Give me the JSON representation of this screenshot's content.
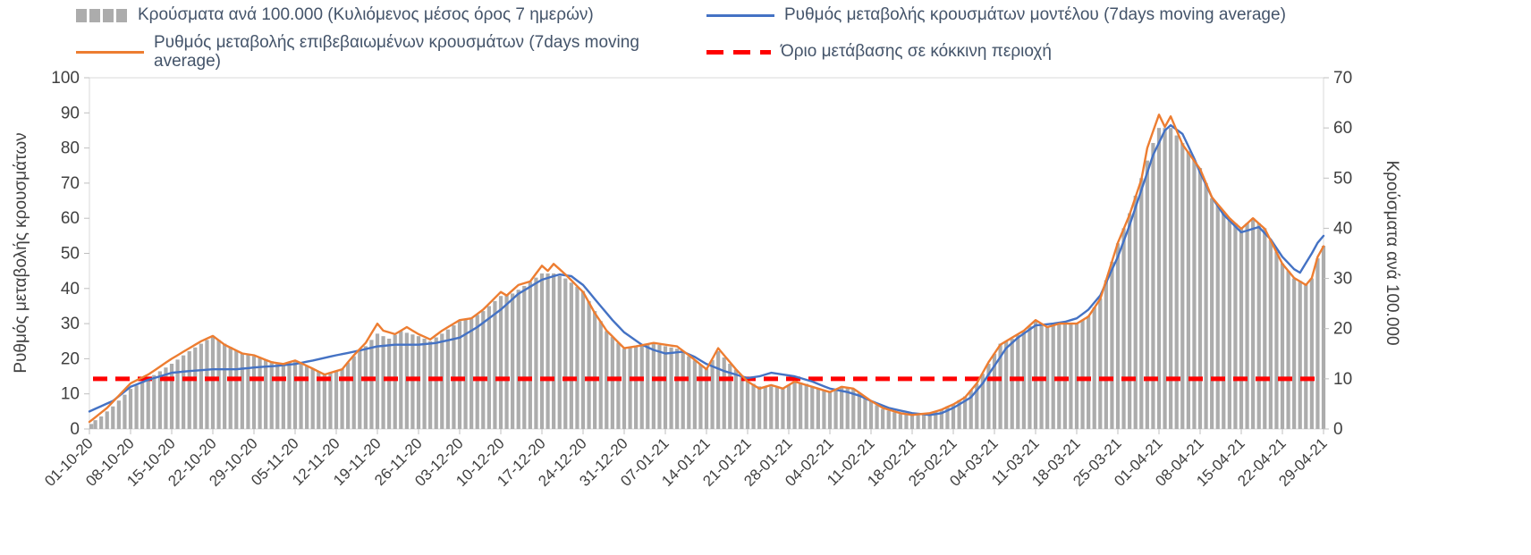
{
  "legend": {
    "items": [
      {
        "id": "cases-per-100k",
        "label": "Κρούσματα ανά 100.000 (Κυλιόμενος μέσος όρος 7 ημερών)",
        "color": "#ACACAC",
        "marker": "bar"
      },
      {
        "id": "model-rate",
        "label": "Ρυθμός μεταβολής κρουσμάτων μοντέλου (7days moving average)",
        "color": "#4472C4",
        "marker": "line"
      },
      {
        "id": "confirmed-rate",
        "label": "Ρυθμός μεταβολής επιβεβαιωμένων κρουσμάτων (7days moving average)",
        "color": "#ED7D31",
        "marker": "line"
      },
      {
        "id": "red-zone-threshold",
        "label": "Όριο μετάβασης σε κόκκινη περιοχή",
        "color": "#FF0000",
        "marker": "dashed"
      }
    ]
  },
  "chart_data": {
    "type": "combo-bar-line",
    "title": "",
    "legend_position": "top",
    "grid": false,
    "x_tick_labels": [
      "01-10-20",
      "08-10-20",
      "15-10-20",
      "22-10-20",
      "29-10-20",
      "05-11-20",
      "12-11-20",
      "19-11-20",
      "26-11-20",
      "03-12-20",
      "10-12-20",
      "17-12-20",
      "24-12-20",
      "31-12-20",
      "07-01-21",
      "14-01-21",
      "21-01-21",
      "28-01-21",
      "04-02-21",
      "11-02-21",
      "18-02-21",
      "25-02-21",
      "04-03-21",
      "11-03-21",
      "18-03-21",
      "25-03-21",
      "01-04-21",
      "08-04-21",
      "15-04-21",
      "22-04-21",
      "29-04-21"
    ],
    "x_tick_interval_days": 7,
    "x_days_total": 211,
    "axes": {
      "left": {
        "label": "Ρυθμός μεταβολής κρουσμάτων",
        "min": 0,
        "max": 100,
        "step": 10
      },
      "right": {
        "label": "Κρούσματα ανά 100.000",
        "min": 0,
        "max": 70,
        "step": 10
      }
    },
    "threshold": {
      "label": "Όριο μετάβασης σε κόκκινη περιοχή",
      "axis": "right",
      "value": 10,
      "color": "#FF0000",
      "style": "dashed"
    },
    "series": [
      {
        "id": "cases-per-100k",
        "name": "Κρούσματα ανά 100.000 (Κυλιόμενος μέσος όρος 7 ημερών)",
        "type": "bar",
        "axis": "right",
        "color": "#ACACAC",
        "points": [
          [
            0,
            1
          ],
          [
            2,
            2.5
          ],
          [
            4,
            4.5
          ],
          [
            7,
            8
          ],
          [
            10,
            10
          ],
          [
            14,
            13
          ],
          [
            17,
            15.5
          ],
          [
            19,
            17
          ],
          [
            21,
            18.5
          ],
          [
            23,
            17
          ],
          [
            26,
            15
          ],
          [
            28,
            14.5
          ],
          [
            31,
            13.5
          ],
          [
            33,
            13
          ],
          [
            35,
            13.5
          ],
          [
            37,
            12.5
          ],
          [
            40,
            11
          ],
          [
            43,
            12
          ],
          [
            45,
            14.5
          ],
          [
            47,
            16.5
          ],
          [
            49,
            19
          ],
          [
            51,
            18
          ],
          [
            53,
            19.5
          ],
          [
            56,
            18.5
          ],
          [
            58,
            17.5
          ],
          [
            60,
            19
          ],
          [
            63,
            21.5
          ],
          [
            65,
            22
          ],
          [
            67,
            23.5
          ],
          [
            70,
            26.5
          ],
          [
            72,
            27
          ],
          [
            74,
            28.5
          ],
          [
            77,
            31
          ],
          [
            79,
            31
          ],
          [
            81,
            30
          ],
          [
            84,
            27.5
          ],
          [
            86,
            23.5
          ],
          [
            88,
            19.5
          ],
          [
            91,
            16
          ],
          [
            93,
            16.5
          ],
          [
            96,
            17
          ],
          [
            98,
            16.5
          ],
          [
            100,
            16
          ],
          [
            102,
            14.5
          ],
          [
            105,
            12
          ],
          [
            107,
            15.5
          ],
          [
            109,
            13
          ],
          [
            112,
            9.5
          ],
          [
            114,
            8.5
          ],
          [
            116,
            8.5
          ],
          [
            118,
            8
          ],
          [
            120,
            9.5
          ],
          [
            122,
            9
          ],
          [
            124,
            8
          ],
          [
            126,
            7.5
          ],
          [
            128,
            8.5
          ],
          [
            130,
            8
          ],
          [
            133,
            5.5
          ],
          [
            135,
            4
          ],
          [
            138,
            3
          ],
          [
            140,
            3
          ],
          [
            143,
            3
          ],
          [
            145,
            4
          ],
          [
            147,
            5
          ],
          [
            149,
            6.5
          ],
          [
            151,
            9
          ],
          [
            153,
            13
          ],
          [
            155,
            17
          ],
          [
            157,
            18
          ],
          [
            159,
            19.5
          ],
          [
            161,
            21.5
          ],
          [
            163,
            20.5
          ],
          [
            165,
            21
          ],
          [
            168,
            21
          ],
          [
            170,
            22.5
          ],
          [
            172,
            26
          ],
          [
            175,
            37
          ],
          [
            177,
            43
          ],
          [
            179,
            50
          ],
          [
            181,
            57
          ],
          [
            182,
            60
          ],
          [
            184,
            60
          ],
          [
            186,
            57
          ],
          [
            189,
            52
          ],
          [
            191,
            46
          ],
          [
            194,
            42
          ],
          [
            196,
            40
          ],
          [
            198,
            42
          ],
          [
            200,
            40
          ],
          [
            203,
            33
          ],
          [
            205,
            30
          ],
          [
            207,
            29
          ],
          [
            208,
            30
          ],
          [
            209,
            34
          ],
          [
            210,
            36.5
          ]
        ]
      },
      {
        "id": "model-rate",
        "name": "Ρυθμός μεταβολής κρουσμάτων μοντέλου (7days moving average)",
        "type": "line",
        "axis": "left",
        "color": "#4472C4",
        "points": [
          [
            0,
            5
          ],
          [
            4,
            8
          ],
          [
            7,
            12
          ],
          [
            10,
            14
          ],
          [
            14,
            16
          ],
          [
            17,
            16.5
          ],
          [
            21,
            17
          ],
          [
            25,
            17
          ],
          [
            28,
            17.5
          ],
          [
            32,
            18
          ],
          [
            35,
            18.5
          ],
          [
            38,
            19.5
          ],
          [
            42,
            21
          ],
          [
            45,
            22
          ],
          [
            49,
            23.5
          ],
          [
            52,
            24
          ],
          [
            56,
            24
          ],
          [
            59,
            24.5
          ],
          [
            63,
            26
          ],
          [
            66,
            29
          ],
          [
            70,
            34
          ],
          [
            73,
            38.5
          ],
          [
            77,
            42.5
          ],
          [
            80,
            44
          ],
          [
            82,
            43.5
          ],
          [
            84,
            41
          ],
          [
            87,
            35
          ],
          [
            89,
            31
          ],
          [
            91,
            27.5
          ],
          [
            94,
            24
          ],
          [
            96,
            22.5
          ],
          [
            98,
            21.5
          ],
          [
            101,
            22
          ],
          [
            103,
            20.5
          ],
          [
            105,
            18.5
          ],
          [
            108,
            16.5
          ],
          [
            110,
            15.5
          ],
          [
            112,
            14.5
          ],
          [
            114,
            15
          ],
          [
            116,
            16
          ],
          [
            118,
            15.5
          ],
          [
            120,
            15
          ],
          [
            123,
            13.5
          ],
          [
            126,
            11.5
          ],
          [
            129,
            10.5
          ],
          [
            131,
            9.5
          ],
          [
            133,
            8
          ],
          [
            136,
            6
          ],
          [
            140,
            4.5
          ],
          [
            143,
            4
          ],
          [
            145,
            4.5
          ],
          [
            147,
            6
          ],
          [
            150,
            9
          ],
          [
            152,
            13
          ],
          [
            154,
            18
          ],
          [
            156,
            23
          ],
          [
            158,
            26
          ],
          [
            161,
            29.5
          ],
          [
            164,
            30
          ],
          [
            166,
            30.5
          ],
          [
            168,
            31.5
          ],
          [
            170,
            34
          ],
          [
            172,
            38
          ],
          [
            175,
            49
          ],
          [
            177,
            58
          ],
          [
            179,
            68
          ],
          [
            181,
            78
          ],
          [
            183,
            85
          ],
          [
            184,
            86.5
          ],
          [
            186,
            84
          ],
          [
            188,
            77
          ],
          [
            189,
            73
          ],
          [
            191,
            66
          ],
          [
            193,
            61
          ],
          [
            196,
            56
          ],
          [
            198,
            57
          ],
          [
            199,
            57.5
          ],
          [
            201,
            54
          ],
          [
            203,
            49
          ],
          [
            205,
            45.5
          ],
          [
            206,
            44.5
          ],
          [
            208,
            50
          ],
          [
            209,
            53
          ],
          [
            210,
            55
          ]
        ]
      },
      {
        "id": "confirmed-rate",
        "name": "Ρυθμός μεταβολής επιβεβαιωμένων κρουσμάτων (7days moving average)",
        "type": "line",
        "axis": "left",
        "color": "#ED7D31",
        "points": [
          [
            0,
            2
          ],
          [
            3,
            6
          ],
          [
            7,
            13
          ],
          [
            10,
            15.5
          ],
          [
            14,
            20
          ],
          [
            17,
            23
          ],
          [
            19,
            25
          ],
          [
            21,
            26.5
          ],
          [
            23,
            24
          ],
          [
            26,
            21.5
          ],
          [
            28,
            21
          ],
          [
            31,
            19
          ],
          [
            33,
            18.5
          ],
          [
            35,
            19.5
          ],
          [
            37,
            18
          ],
          [
            40,
            15.5
          ],
          [
            43,
            17
          ],
          [
            45,
            21
          ],
          [
            47,
            24.5
          ],
          [
            49,
            30
          ],
          [
            50,
            28
          ],
          [
            52,
            27
          ],
          [
            54,
            29
          ],
          [
            56,
            27
          ],
          [
            58,
            25.5
          ],
          [
            60,
            28
          ],
          [
            63,
            31
          ],
          [
            65,
            31.5
          ],
          [
            67,
            34
          ],
          [
            70,
            39
          ],
          [
            71,
            38
          ],
          [
            73,
            41
          ],
          [
            75,
            42
          ],
          [
            77,
            46.5
          ],
          [
            78,
            45
          ],
          [
            79,
            47
          ],
          [
            81,
            44
          ],
          [
            84,
            39
          ],
          [
            86,
            33
          ],
          [
            88,
            28
          ],
          [
            91,
            23
          ],
          [
            93,
            23.5
          ],
          [
            96,
            24.5
          ],
          [
            98,
            24
          ],
          [
            100,
            23.5
          ],
          [
            102,
            21
          ],
          [
            105,
            17
          ],
          [
            107,
            23
          ],
          [
            108,
            21
          ],
          [
            110,
            17
          ],
          [
            112,
            13.5
          ],
          [
            114,
            11.5
          ],
          [
            116,
            12.5
          ],
          [
            118,
            11.5
          ],
          [
            120,
            13.5
          ],
          [
            122,
            12.5
          ],
          [
            124,
            11.5
          ],
          [
            126,
            10.5
          ],
          [
            128,
            12
          ],
          [
            130,
            11.5
          ],
          [
            133,
            8
          ],
          [
            135,
            6
          ],
          [
            138,
            4.5
          ],
          [
            140,
            4
          ],
          [
            143,
            4.5
          ],
          [
            145,
            5.5
          ],
          [
            147,
            7
          ],
          [
            149,
            9
          ],
          [
            151,
            13
          ],
          [
            153,
            19
          ],
          [
            155,
            24
          ],
          [
            157,
            26
          ],
          [
            159,
            28
          ],
          [
            161,
            31
          ],
          [
            163,
            29
          ],
          [
            165,
            30
          ],
          [
            168,
            30
          ],
          [
            170,
            32
          ],
          [
            172,
            37
          ],
          [
            175,
            53
          ],
          [
            177,
            61
          ],
          [
            179,
            71
          ],
          [
            180,
            80
          ],
          [
            182,
            89.5
          ],
          [
            183,
            86
          ],
          [
            184,
            89
          ],
          [
            186,
            81
          ],
          [
            189,
            74
          ],
          [
            191,
            66
          ],
          [
            194,
            60
          ],
          [
            196,
            57
          ],
          [
            198,
            60
          ],
          [
            200,
            57
          ],
          [
            203,
            47
          ],
          [
            205,
            43
          ],
          [
            207,
            41
          ],
          [
            208,
            43
          ],
          [
            209,
            49
          ],
          [
            210,
            52
          ]
        ]
      }
    ]
  }
}
